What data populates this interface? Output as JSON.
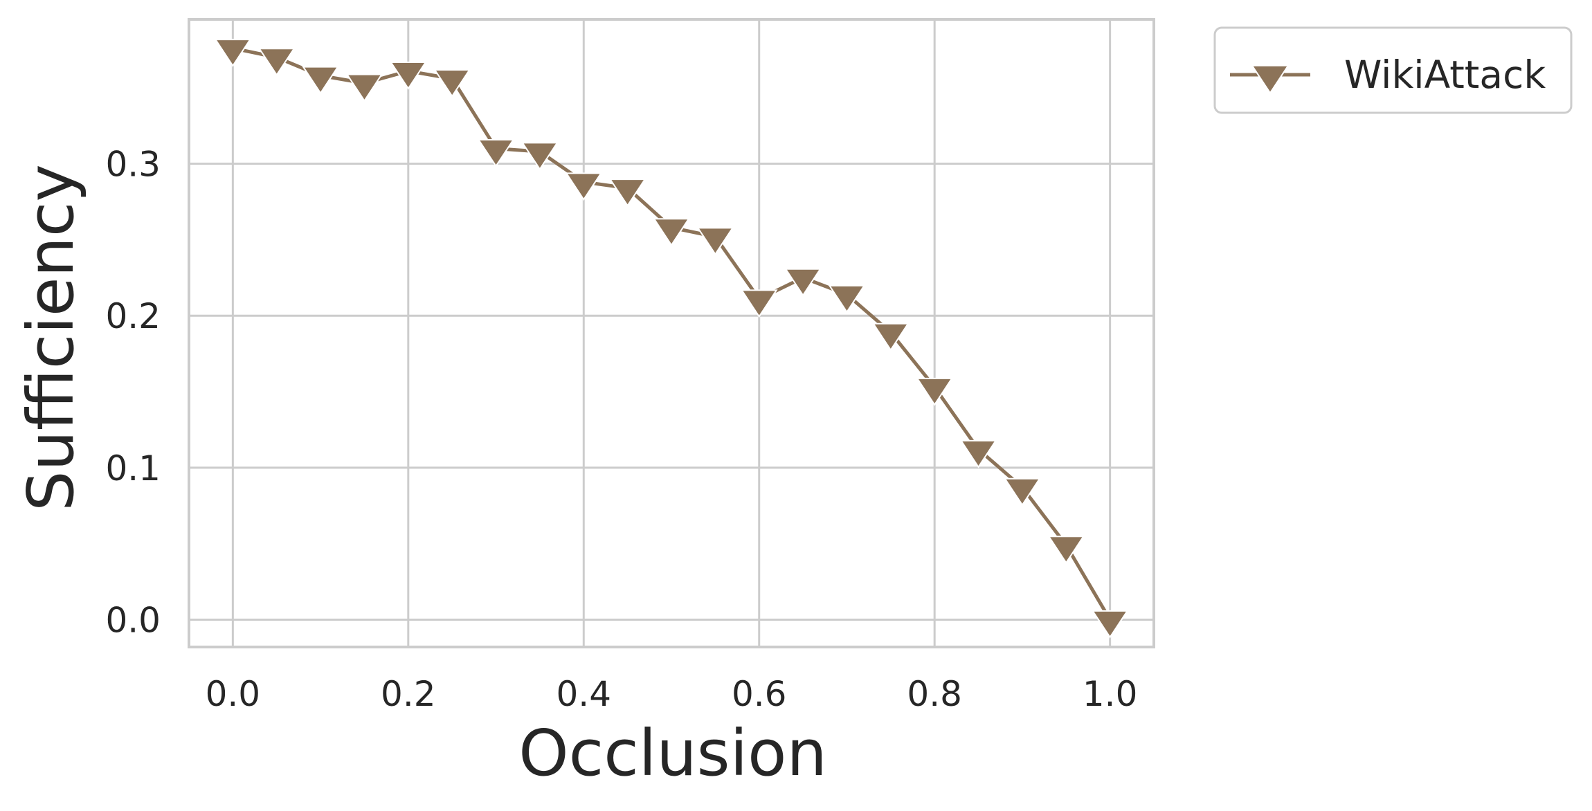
{
  "colors": {
    "series": "#8c7358",
    "grid": "#cccccc",
    "frame": "#cccccc",
    "text": "#262626",
    "background": "#ffffff"
  },
  "chart_data": {
    "type": "line",
    "title": "",
    "xlabel": "Occlusion",
    "ylabel": "Sufficiency",
    "xlim": [
      -0.05,
      1.05
    ],
    "ylim": [
      -0.018,
      0.395
    ],
    "xticks": [
      0.0,
      0.2,
      0.4,
      0.6,
      0.8,
      1.0
    ],
    "xtick_labels": [
      "0.0",
      "0.2",
      "0.4",
      "0.6",
      "0.8",
      "1.0"
    ],
    "yticks": [
      0.0,
      0.1,
      0.2,
      0.3
    ],
    "ytick_labels": [
      "0.0",
      "0.1",
      "0.2",
      "0.3"
    ],
    "grid": true,
    "legend_position": "outside-top-right",
    "series": [
      {
        "name": "WikiAttack",
        "marker": "triangle-down",
        "x": [
          0.0,
          0.05,
          0.1,
          0.15,
          0.2,
          0.25,
          0.3,
          0.35,
          0.4,
          0.45,
          0.5,
          0.55,
          0.6,
          0.65,
          0.7,
          0.75,
          0.8,
          0.85,
          0.9,
          0.95,
          1.0
        ],
        "y": [
          0.376,
          0.37,
          0.358,
          0.353,
          0.361,
          0.356,
          0.31,
          0.308,
          0.288,
          0.284,
          0.258,
          0.252,
          0.211,
          0.225,
          0.214,
          0.189,
          0.153,
          0.112,
          0.087,
          0.049,
          0.0
        ]
      }
    ]
  }
}
